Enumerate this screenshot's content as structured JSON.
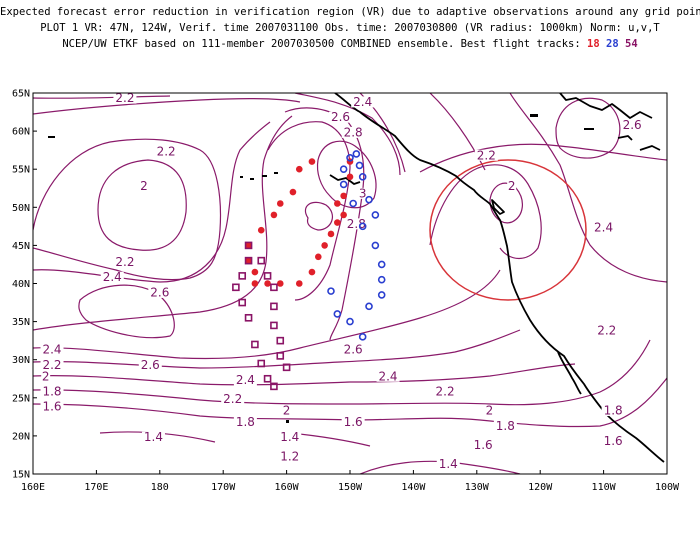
{
  "title": {
    "line1": "Expected forecast error reduction in verification region (VR) due to adaptive observations around any grid point.",
    "line2": "PLOT 1 VR: 47N, 124W, Verif. time 2007031100 Obs. time: 2007030800 (VR radius: 1000km) Norm: u,v,T",
    "line3_prefix": "NCEP/UW ETKF based on 111-member 2007030500 COMBINED ensemble.  Best flight tracks:",
    "track1": "18",
    "track2": "28",
    "track3": "54"
  },
  "colors": {
    "track_18": "#e0202a",
    "track_28": "#2a3fd0",
    "track_54": "#8a1466",
    "contour": "#8a1a6a",
    "verification_circle": "#d8353a"
  },
  "axes": {
    "lat_labels": [
      "65N",
      "60N",
      "55N",
      "50N",
      "45N",
      "40N",
      "35N",
      "30N",
      "25N",
      "20N",
      "15N"
    ],
    "lon_labels": [
      "160E",
      "170E",
      "180",
      "170W",
      "160W",
      "150W",
      "140W",
      "130W",
      "120W",
      "110W",
      "100W"
    ]
  },
  "contour_labels": [
    {
      "text": "2.2",
      "lon": -185.5,
      "lat": 64.0
    },
    {
      "text": "2.4",
      "lon": -148.0,
      "lat": 63.5
    },
    {
      "text": "2.6",
      "lon": -151.5,
      "lat": 61.5
    },
    {
      "text": "2.8",
      "lon": -149.5,
      "lat": 59.5
    },
    {
      "text": "2.6",
      "lon": -105.5,
      "lat": 60.5
    },
    {
      "text": "2.2",
      "lon": -179.0,
      "lat": 57.0
    },
    {
      "text": "2.2",
      "lon": -128.5,
      "lat": 56.5
    },
    {
      "text": "2",
      "lon": -182.5,
      "lat": 52.5
    },
    {
      "text": "2",
      "lon": -124.5,
      "lat": 52.5
    },
    {
      "text": "3",
      "lon": -148.0,
      "lat": 51.5
    },
    {
      "text": "2.8",
      "lon": -149.0,
      "lat": 47.5
    },
    {
      "text": "2.4",
      "lon": -110.0,
      "lat": 47.0
    },
    {
      "text": "2.2",
      "lon": -185.5,
      "lat": 42.5
    },
    {
      "text": "2.4",
      "lon": -187.5,
      "lat": 40.5
    },
    {
      "text": "2.6",
      "lon": -180.0,
      "lat": 38.5
    },
    {
      "text": "2.2",
      "lon": -109.5,
      "lat": 33.5
    },
    {
      "text": "2.4",
      "lon": -197.0,
      "lat": 31.0
    },
    {
      "text": "2.6",
      "lon": -149.5,
      "lat": 31.0
    },
    {
      "text": "2.2",
      "lon": -197.0,
      "lat": 29.0
    },
    {
      "text": "2.6",
      "lon": -181.5,
      "lat": 29.0
    },
    {
      "text": "2",
      "lon": -198.0,
      "lat": 27.5
    },
    {
      "text": "2.4",
      "lon": -166.5,
      "lat": 27.0
    },
    {
      "text": "2.4",
      "lon": -144.0,
      "lat": 27.5
    },
    {
      "text": "1.8",
      "lon": -197.0,
      "lat": 25.5
    },
    {
      "text": "2.2",
      "lon": -168.5,
      "lat": 24.5
    },
    {
      "text": "2.2",
      "lon": -135.0,
      "lat": 25.5
    },
    {
      "text": "1.6",
      "lon": -197.0,
      "lat": 23.5
    },
    {
      "text": "2",
      "lon": -160.0,
      "lat": 23.0
    },
    {
      "text": "2",
      "lon": -128.0,
      "lat": 23.0
    },
    {
      "text": "1.8",
      "lon": -108.5,
      "lat": 23.0
    },
    {
      "text": "1.8",
      "lon": -166.5,
      "lat": 21.5
    },
    {
      "text": "1.6",
      "lon": -149.5,
      "lat": 21.5
    },
    {
      "text": "1.8",
      "lon": -125.5,
      "lat": 21.0
    },
    {
      "text": "1.4",
      "lon": -181.0,
      "lat": 19.5
    },
    {
      "text": "1.4",
      "lon": -159.5,
      "lat": 19.5
    },
    {
      "text": "1.6",
      "lon": -129.0,
      "lat": 18.5
    },
    {
      "text": "1.6",
      "lon": -108.5,
      "lat": 19.0
    },
    {
      "text": "1.2",
      "lon": -159.5,
      "lat": 17.0
    },
    {
      "text": "1.4",
      "lon": -134.5,
      "lat": 16.0
    }
  ],
  "tracks": [
    {
      "name": "18",
      "marker": "dot",
      "points": [
        [
          -156,
          56
        ],
        [
          -158,
          55
        ],
        [
          -159,
          52
        ],
        [
          -161,
          50.5
        ],
        [
          -162,
          49
        ],
        [
          -164,
          47
        ],
        [
          -166,
          45
        ],
        [
          -166,
          43
        ],
        [
          -165,
          41.5
        ],
        [
          -165,
          40
        ],
        [
          -163,
          40
        ],
        [
          -161,
          40
        ],
        [
          -158,
          40
        ],
        [
          -156,
          41.5
        ],
        [
          -155,
          43.5
        ],
        [
          -154,
          45
        ],
        [
          -153,
          46.5
        ],
        [
          -152,
          48
        ],
        [
          -151,
          49
        ],
        [
          -152,
          50.5
        ],
        [
          -151,
          51.5
        ],
        [
          -150,
          54
        ],
        [
          -150,
          56
        ]
      ]
    },
    {
      "name": "28",
      "marker": "circle",
      "points": [
        [
          -150,
          56.5
        ],
        [
          -149,
          57
        ],
        [
          -148.5,
          55.5
        ],
        [
          -151,
          55
        ],
        [
          -148,
          54
        ],
        [
          -151,
          53
        ],
        [
          -147,
          51
        ],
        [
          -149.5,
          50.5
        ],
        [
          -146,
          49
        ],
        [
          -148,
          47.5
        ],
        [
          -146,
          45
        ],
        [
          -145,
          42.5
        ],
        [
          -145,
          40.5
        ],
        [
          -145,
          38.5
        ],
        [
          -147,
          37
        ],
        [
          -150,
          35
        ],
        [
          -148,
          33
        ],
        [
          -152,
          36
        ],
        [
          -153,
          39
        ]
      ]
    },
    {
      "name": "54",
      "marker": "square",
      "points": [
        [
          -166,
          45
        ],
        [
          -164,
          43
        ],
        [
          -166,
          43
        ],
        [
          -163,
          41
        ],
        [
          -167,
          41
        ],
        [
          -162,
          39.5
        ],
        [
          -168,
          39.5
        ],
        [
          -162,
          37
        ],
        [
          -167,
          37.5
        ],
        [
          -162,
          34.5
        ],
        [
          -166,
          35.5
        ],
        [
          -161,
          32.5
        ],
        [
          -165,
          32
        ],
        [
          -161,
          30.5
        ],
        [
          -164,
          29.5
        ],
        [
          -160,
          29
        ],
        [
          -163,
          27.5
        ],
        [
          -162,
          26.5
        ]
      ]
    }
  ],
  "verification_region": {
    "center_lon": -124,
    "center_lat": 47,
    "radius_km": 1000
  }
}
